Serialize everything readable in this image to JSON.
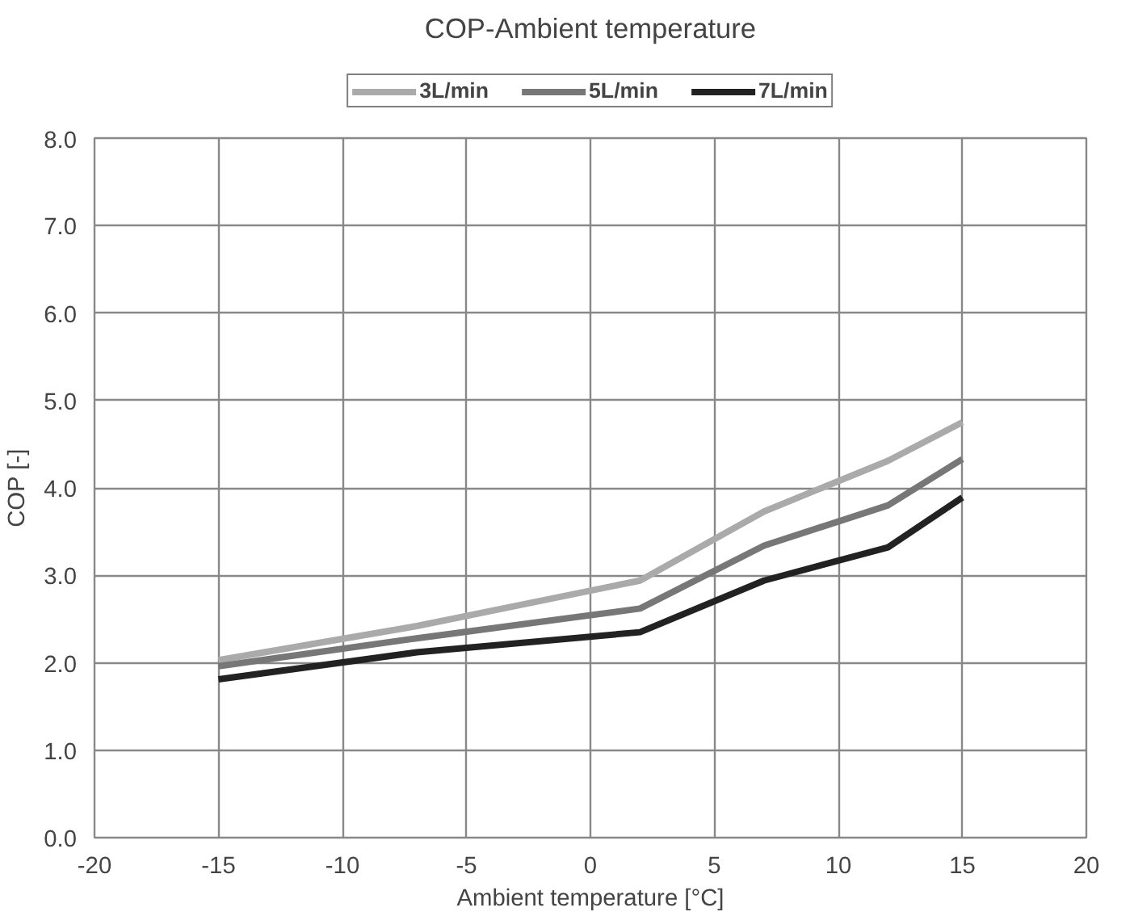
{
  "chart_data": {
    "type": "line",
    "title": "COP-Ambient temperature",
    "xlabel": "Ambient temperature [°C]",
    "ylabel": "COP [-]",
    "x": [
      -15,
      -7,
      2,
      7,
      12,
      15
    ],
    "series": [
      {
        "name": "3L/min",
        "color": "#aaaaaa",
        "values": [
          2.03,
          2.42,
          2.94,
          3.73,
          4.31,
          4.75
        ]
      },
      {
        "name": "5L/min",
        "color": "#777777",
        "values": [
          1.96,
          2.28,
          2.62,
          3.34,
          3.8,
          4.33
        ]
      },
      {
        "name": "7L/min",
        "color": "#222222",
        "values": [
          1.81,
          2.12,
          2.35,
          2.94,
          3.32,
          3.89
        ]
      }
    ],
    "xlim": [
      -20,
      20
    ],
    "xticks": [
      -20,
      -15,
      -10,
      -5,
      0,
      5,
      10,
      15,
      20
    ],
    "ylim": [
      0,
      8
    ],
    "yticks": [
      {
        "value": 0,
        "label": "0.0"
      },
      {
        "value": 1,
        "label": "1.0"
      },
      {
        "value": 2,
        "label": "2.0"
      },
      {
        "value": 3,
        "label": "3.0"
      },
      {
        "value": 4,
        "label": "4.0"
      },
      {
        "value": 5,
        "label": "5.0"
      },
      {
        "value": 6,
        "label": "6.0"
      },
      {
        "value": 7,
        "label": "7.0"
      },
      {
        "value": 8,
        "label": "8.0"
      }
    ],
    "grid": true,
    "legend": "top",
    "marker": "none",
    "line_style": "solid"
  }
}
